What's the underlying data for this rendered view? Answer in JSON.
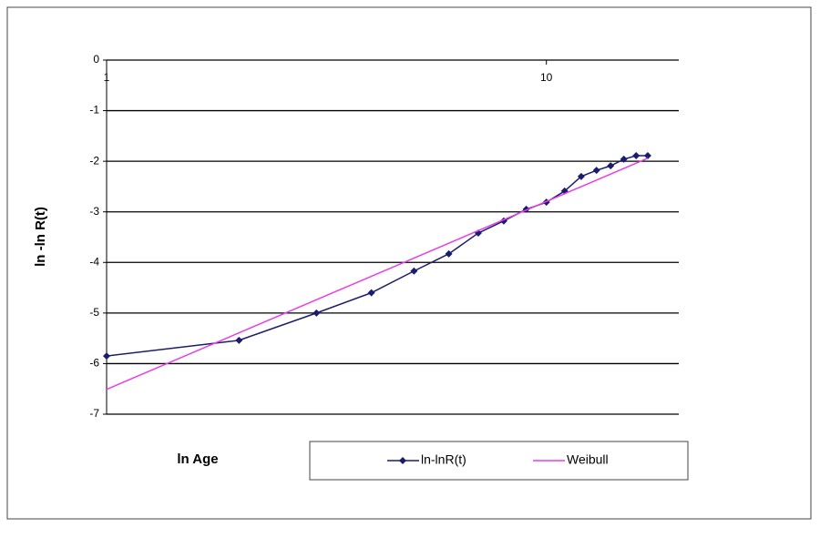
{
  "chart_data": {
    "type": "line",
    "x_label": "ln Age",
    "y_label": "ln -ln R(t)",
    "xscale": "log",
    "xlim": [
      1,
      20
    ],
    "xticks": [
      1,
      10
    ],
    "ylim": [
      -7,
      0
    ],
    "yticks": [
      -7,
      -6,
      -5,
      -4,
      -3,
      -2,
      -1,
      0
    ],
    "grid": true,
    "legend": "bottom",
    "series": [
      {
        "name": "ln-lnR(t)",
        "color": "#1c1c6e",
        "marker": "diamond",
        "x": [
          1,
          2,
          3,
          4,
          5,
          6,
          7,
          8,
          9,
          10,
          11,
          12,
          13,
          14,
          15,
          16,
          17
        ],
        "values": [
          -5.85,
          -5.54,
          -5.0,
          -4.6,
          -4.17,
          -3.83,
          -3.42,
          -3.18,
          -2.95,
          -2.81,
          -2.59,
          -2.3,
          -2.18,
          -2.09,
          -1.96,
          -1.89,
          -1.89
        ]
      },
      {
        "name": "Weibull",
        "color": "#e83ee8",
        "marker": "none",
        "x": [
          1,
          17
        ],
        "values": [
          -6.51,
          -1.94
        ]
      }
    ]
  }
}
